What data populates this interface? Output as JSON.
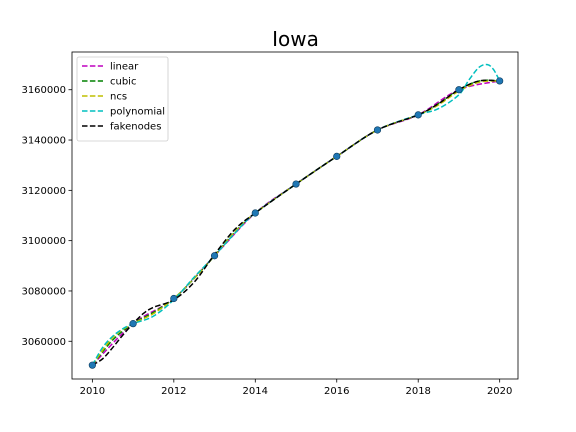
{
  "chart_data": {
    "type": "line",
    "title": "Iowa",
    "xlabel": "",
    "ylabel": "",
    "xlim": [
      2009.5,
      2020.45
    ],
    "ylim": [
      3045000,
      3175000
    ],
    "xticks": [
      2010,
      2012,
      2014,
      2016,
      2018,
      2020
    ],
    "xtick_labels": [
      "2010",
      "2012",
      "2014",
      "2016",
      "2018",
      "2020"
    ],
    "yticks": [
      3060000,
      3080000,
      3100000,
      3120000,
      3140000,
      3160000
    ],
    "ytick_labels": [
      "3060000",
      "3080000",
      "3100000",
      "3120000",
      "3140000",
      "3160000"
    ],
    "grid": false,
    "legend_position": "top-left",
    "points": {
      "x": [
        2010,
        2011,
        2012,
        2013,
        2014,
        2015,
        2016,
        2017,
        2018,
        2019,
        2020
      ],
      "y": [
        3050500,
        3067000,
        3077000,
        3094000,
        3111000,
        3122500,
        3133500,
        3144000,
        3150000,
        3160000,
        3163500
      ],
      "color": "#1f77b4"
    },
    "series": [
      {
        "name": "linear",
        "color": "#bf00bf",
        "x": [
          2010,
          2011,
          2012,
          2013,
          2014,
          2015,
          2016,
          2017,
          2018,
          2019,
          2020
        ],
        "y": [
          3050500,
          3067000,
          3077000,
          3094000,
          3111000,
          3122500,
          3133500,
          3144000,
          3150000,
          3160000,
          3163500
        ]
      },
      {
        "name": "cubic",
        "color": "#008000",
        "x": [
          2010,
          2010.5,
          2011,
          2011.5,
          2012,
          2012.5,
          2013,
          2013.5,
          2014,
          2015,
          2016,
          2017,
          2018,
          2018.5,
          2019,
          2019.5,
          2020
        ],
        "y": [
          3050500,
          3060500,
          3067000,
          3071500,
          3077000,
          3085000,
          3094000,
          3103500,
          3111000,
          3122500,
          3133500,
          3144000,
          3150000,
          3154500,
          3160000,
          3163500,
          3163500
        ]
      },
      {
        "name": "ncs",
        "color": "#bfbf00",
        "x": [
          2010,
          2010.5,
          2011,
          2011.5,
          2012,
          2012.5,
          2013,
          2013.5,
          2014,
          2015,
          2016,
          2017,
          2018,
          2018.5,
          2019,
          2019.5,
          2020
        ],
        "y": [
          3050500,
          3061500,
          3067000,
          3071000,
          3077000,
          3085000,
          3094000,
          3103500,
          3111000,
          3122500,
          3133500,
          3144000,
          3150000,
          3154000,
          3159500,
          3163000,
          3163500
        ]
      },
      {
        "name": "polynomial",
        "color": "#00bfbf",
        "x": [
          2010,
          2010.25,
          2010.5,
          2010.75,
          2011,
          2011.5,
          2012,
          2012.5,
          2013,
          2013.5,
          2014,
          2015,
          2016,
          2017,
          2018,
          2018.5,
          2019,
          2019.25,
          2019.5,
          2019.7,
          2019.85,
          2020
        ],
        "y": [
          3050500,
          3057500,
          3062000,
          3065000,
          3067000,
          3070000,
          3076500,
          3085500,
          3094000,
          3103000,
          3111000,
          3122500,
          3133500,
          3144000,
          3150000,
          3152500,
          3158000,
          3164000,
          3169000,
          3170000,
          3168000,
          3163500
        ]
      },
      {
        "name": "fakenodes",
        "color": "#000000",
        "x": [
          2010,
          2010.25,
          2010.5,
          2010.75,
          2011,
          2011.25,
          2011.5,
          2012,
          2012.5,
          2013,
          2013.5,
          2014,
          2015,
          2016,
          2017,
          2018,
          2018.5,
          2019,
          2019.5,
          2020
        ],
        "y": [
          3050500,
          3053000,
          3057500,
          3062500,
          3067000,
          3071000,
          3073500,
          3076500,
          3083500,
          3094500,
          3104500,
          3111000,
          3122500,
          3133500,
          3144000,
          3150000,
          3154500,
          3160000,
          3163500,
          3163500
        ]
      }
    ]
  }
}
